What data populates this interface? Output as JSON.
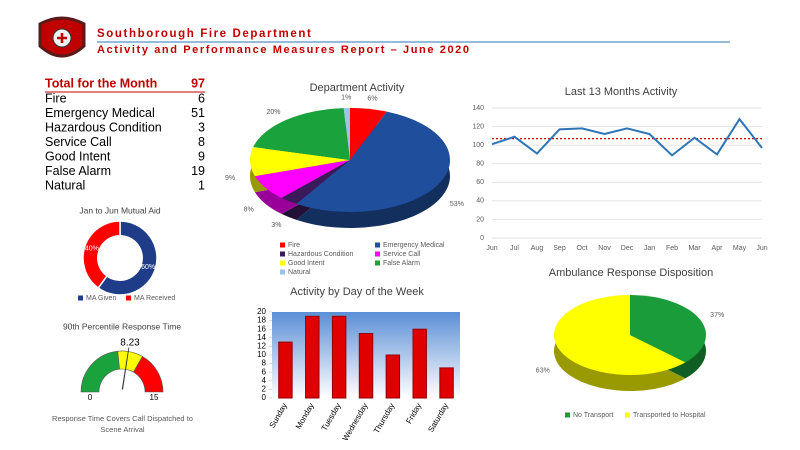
{
  "header": {
    "title": "Southborough Fire Department",
    "subtitle": "Activity and Performance Measures Report – June 2020"
  },
  "table": {
    "header": [
      "Total for the Month",
      97
    ],
    "rows": [
      [
        "Fire",
        6
      ],
      [
        "Emergency Medical",
        51
      ],
      [
        "Hazardous Condition",
        3
      ],
      [
        "Service Call",
        8
      ],
      [
        "Good Intent",
        9
      ],
      [
        "False Alarm",
        19
      ],
      [
        "Natural",
        1
      ]
    ]
  },
  "chart_data": [
    {
      "type": "pie",
      "title": "Department Activity",
      "categories": [
        "Fire",
        "Emergency Medical",
        "Hazardous Condition",
        "Service Call",
        "Good Intent",
        "False Alarm",
        "Natural"
      ],
      "values": [
        6,
        53,
        3,
        8,
        9,
        20,
        1
      ],
      "value_labels": [
        "6%",
        "53%",
        "3%",
        "8%",
        "9%",
        "20%",
        "1%"
      ],
      "colors": [
        "#ff0000",
        "#1f4e9c",
        "#3b1a5c",
        "#ff00ff",
        "#ffff00",
        "#1aa23c",
        "#9dc3e6"
      ]
    },
    {
      "type": "donut",
      "title": "Jan to Jun Mutual Aid",
      "categories": [
        "MA Given",
        "MA Received"
      ],
      "values": [
        60,
        40
      ],
      "value_labels": [
        "60%",
        "40%"
      ],
      "colors": [
        "#1f3c88",
        "#ff0000"
      ]
    },
    {
      "type": "gauge",
      "title": "90th Percentile Response Time",
      "value": 8.23,
      "range": [
        0,
        15
      ],
      "bands": [
        {
          "to": 7,
          "color": "#1aa23c"
        },
        {
          "to": 10,
          "color": "#ffff00"
        },
        {
          "to": 15,
          "color": "#ff0000"
        }
      ],
      "caption": "Response Time Covers Call Dispatched to Scene Arrival"
    },
    {
      "type": "line",
      "title": "Last 13 Months Activity",
      "categories": [
        "Jun",
        "Jul",
        "Aug",
        "Sep",
        "Oct",
        "Nov",
        "Dec",
        "Jan",
        "Feb",
        "Mar",
        "Apr",
        "May",
        "Jun"
      ],
      "values": [
        101,
        109,
        91,
        117,
        118,
        112,
        118,
        112,
        89,
        108,
        90,
        128,
        97
      ],
      "color": "#2e75b6",
      "ylim": [
        0,
        140
      ],
      "yticks": [
        0,
        20,
        40,
        60,
        80,
        100,
        120,
        140
      ],
      "reference_line": {
        "value": 107,
        "color": "#c00000"
      }
    },
    {
      "type": "bar",
      "title": "Activity by Day of the Week",
      "categories": [
        "Sunday",
        "Monday",
        "Tuesday",
        "Wednesday",
        "Thursday",
        "Friday",
        "Saturday"
      ],
      "values": [
        13,
        19,
        19,
        15,
        10,
        16,
        7
      ],
      "color": "#e00000",
      "ylim": [
        0,
        20
      ],
      "yticks": [
        0,
        2,
        4,
        6,
        8,
        10,
        12,
        14,
        16,
        18,
        20
      ]
    },
    {
      "type": "pie",
      "title": "Ambulance Response Disposition",
      "categories": [
        "No Transport",
        "Transported to Hospital"
      ],
      "values": [
        37,
        63
      ],
      "value_labels": [
        "37%",
        "63%"
      ],
      "colors": [
        "#1a9c3a",
        "#ffff00"
      ]
    }
  ]
}
